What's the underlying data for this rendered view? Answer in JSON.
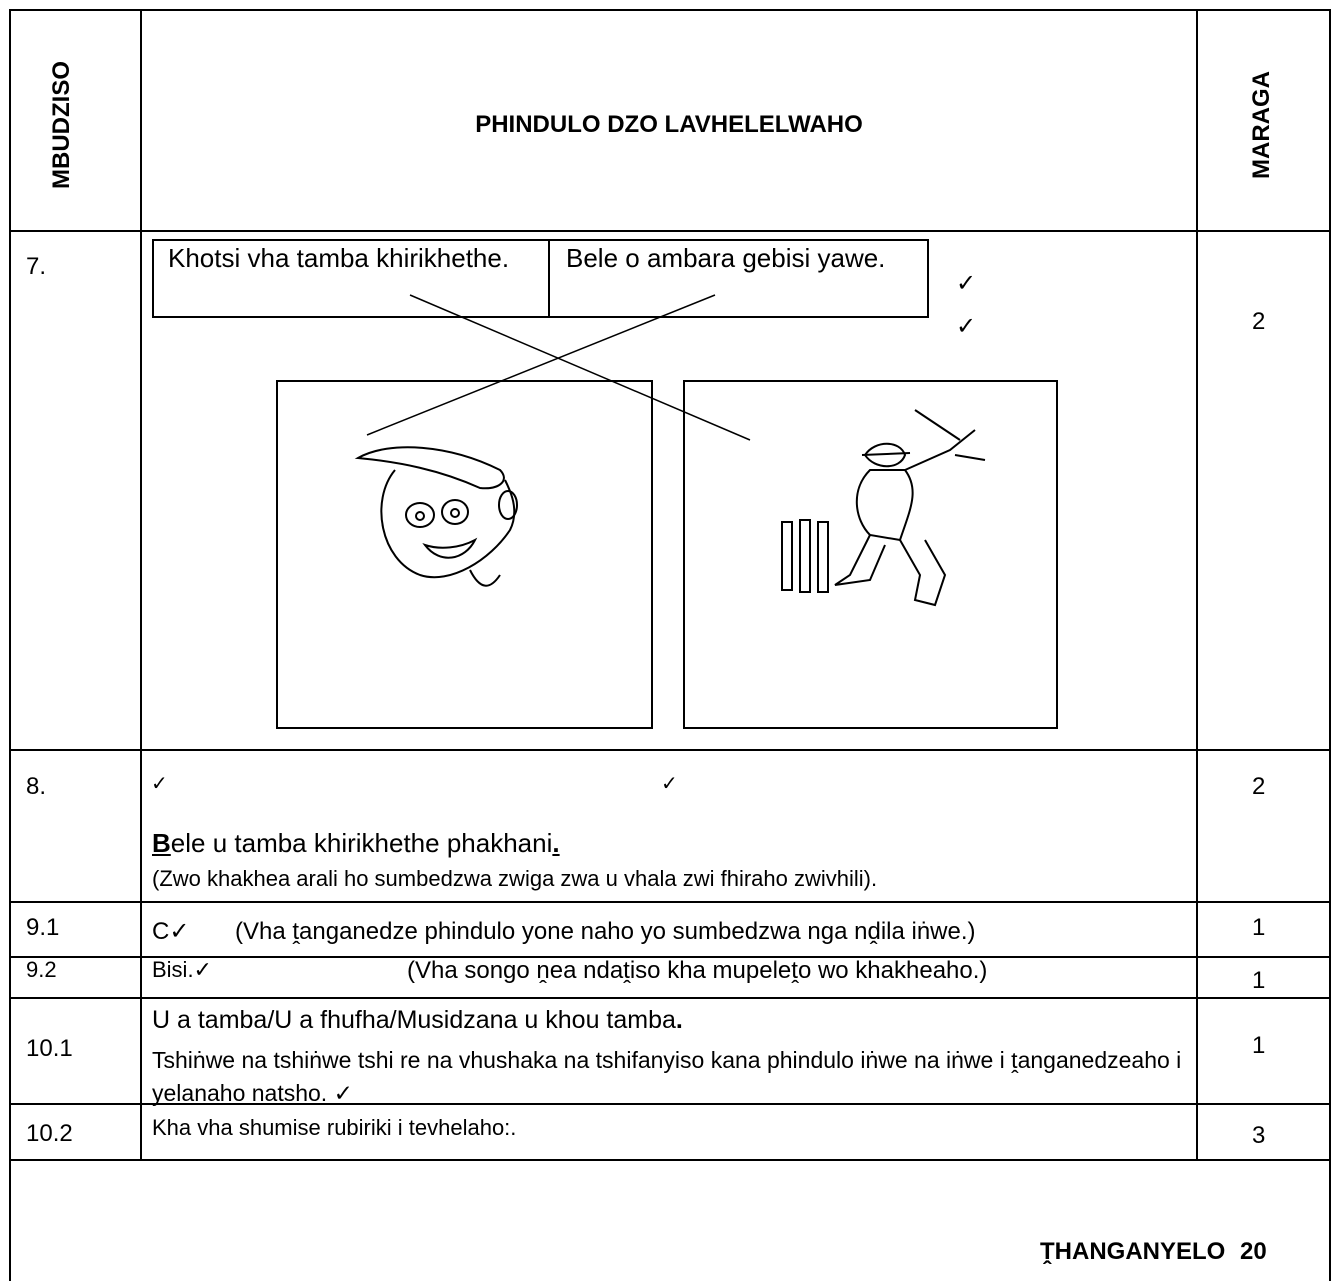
{
  "header": {
    "question": "MBUDZISO",
    "title": "PHINDULO DZO LAVHELELWAHO",
    "marks": "MARAGA"
  },
  "rows": [
    {
      "number": "7.",
      "labels": [
        "Khotsi vha tamba khirikhethe.",
        "Bele o ambara gebisi yawe."
      ],
      "ticks": [
        "✓",
        "✓"
      ],
      "marks": 2
    },
    {
      "number": "8.",
      "ticks": [
        "✓",
        "✓"
      ],
      "answer": [
        "B",
        "ele u tamba khirikhethe phakhani",
        "."
      ],
      "note": "(Zwo khakhea arali ho sumbedzwa zwiga zwa u vhala zwi fhiraho zwivhili).",
      "marks": 2
    },
    {
      "number": "9.1",
      "answer": "C✓",
      "note": "(Vha ṱanganedze phindulo yone naho yo sumbedzwa nga nḓila iṅwe.)",
      "marks": 1
    },
    {
      "number": "9.2",
      "answer": "Bisi.✓",
      "note": "(Vha songo ṋea ndaṱiso kha mupeleṱo wo khakheaho.)",
      "marks": 1
    },
    {
      "number": "10.1",
      "answer": [
        "U a tamba/U a fhufha/Musidzana u khou tamba",
        "."
      ],
      "note": "Tshiṅwe na tshiṅwe tshi re na vhushaka na tshifanyiso kana phindulo iṅwe na iṅwe i ṱanganedzeaho i yelanaho natsho. ✓",
      "marks": 1
    },
    {
      "number": "10.2",
      "answer": "Kha vha shumise rubiriki  i  tevhelaho:.",
      "marks": 3
    }
  ],
  "total": {
    "label": "ṰHANGANYELO",
    "value": 20
  }
}
